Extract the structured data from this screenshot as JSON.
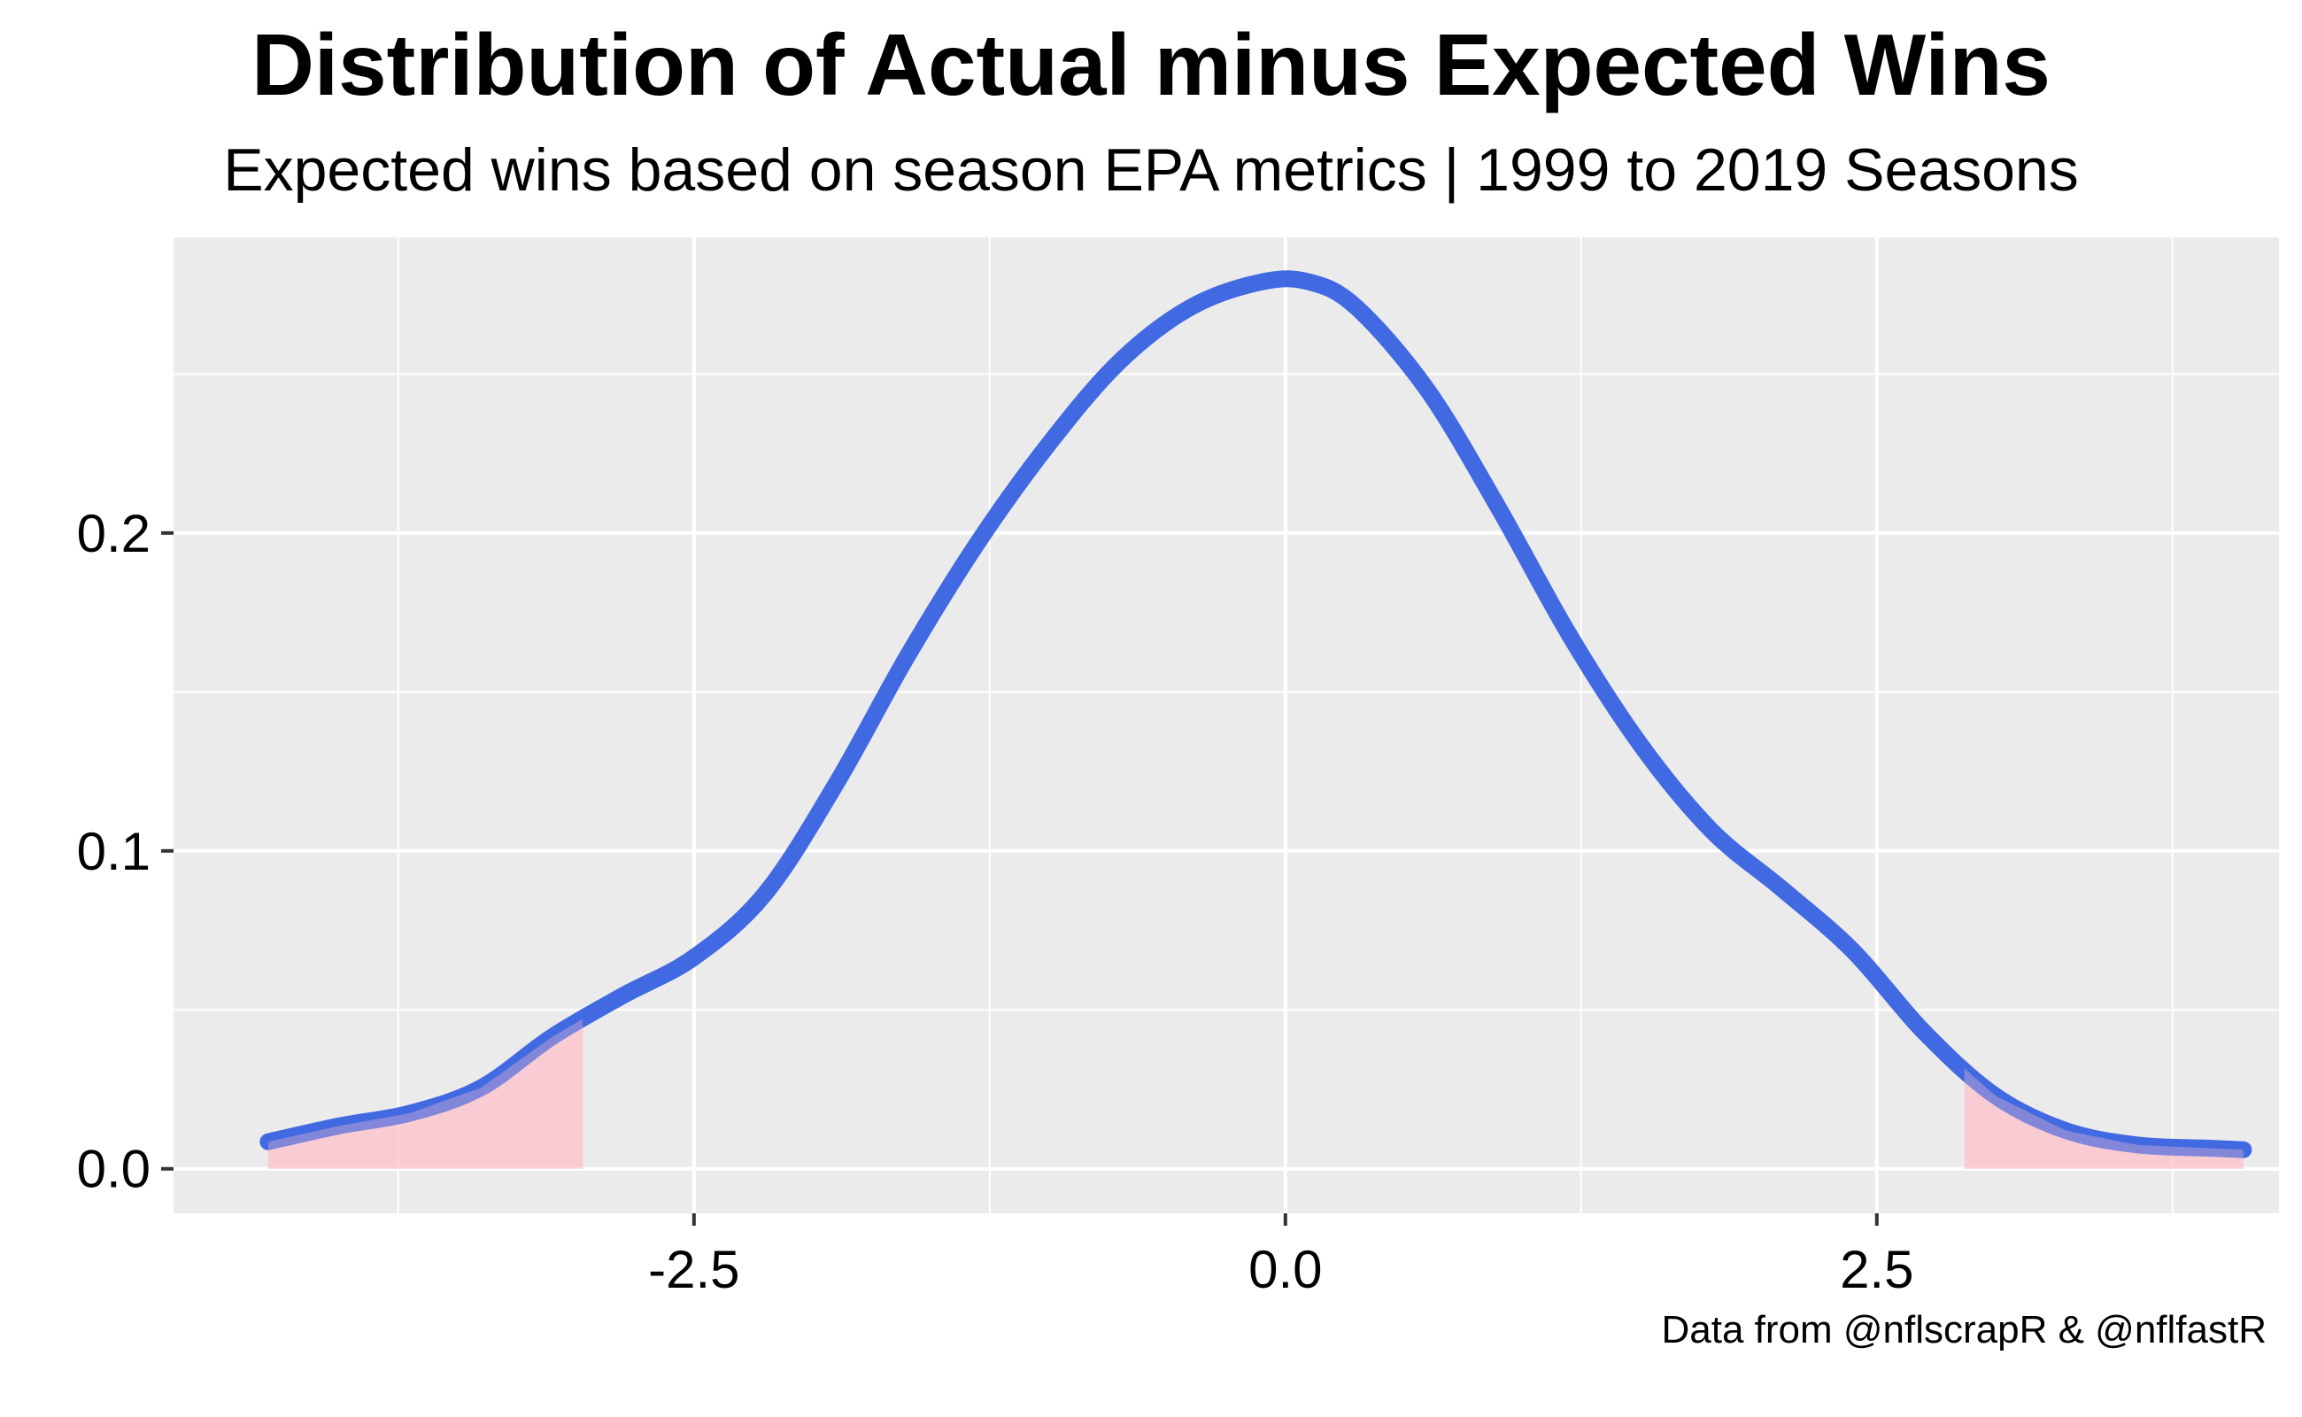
{
  "chart_data": {
    "type": "area",
    "title": "Distribution of Actual minus Expected Wins",
    "subtitle": "Expected wins based on season EPA metrics | 1999 to 2019 Seasons",
    "caption": "Data from @nflscrapR & @nflfastR",
    "xlabel": "",
    "ylabel": "",
    "xlim": [
      -4.7,
      4.2
    ],
    "ylim": [
      -0.014,
      0.293
    ],
    "x_ticks": [
      -2.5,
      0.0,
      2.5
    ],
    "x_tick_labels": [
      "-2.5",
      "0.0",
      "2.5"
    ],
    "y_ticks": [
      0.0,
      0.1,
      0.2
    ],
    "y_tick_labels": [
      "0.0",
      "0.1",
      "0.2"
    ],
    "grid": true,
    "legend": "none",
    "series": [
      {
        "type": "line",
        "color": "#4169E1",
        "x": [
          -4.3,
          -4.0,
          -3.7,
          -3.4,
          -3.1,
          -2.8,
          -2.5,
          -2.2,
          -1.9,
          -1.6,
          -1.3,
          -1.0,
          -0.7,
          -0.4,
          -0.1,
          0.1,
          0.3,
          0.6,
          0.9,
          1.2,
          1.5,
          1.8,
          2.1,
          2.4,
          2.7,
          3.0,
          3.3,
          3.6,
          3.9,
          4.05
        ],
        "y": [
          0.0085,
          0.0135,
          0.0175,
          0.0255,
          0.0415,
          0.0545,
          0.0665,
          0.0865,
          0.121,
          0.161,
          0.197,
          0.228,
          0.254,
          0.271,
          0.279,
          0.279,
          0.271,
          0.245,
          0.208,
          0.168,
          0.1335,
          0.1065,
          0.088,
          0.0685,
          0.043,
          0.023,
          0.012,
          0.0075,
          0.0065,
          0.006
        ]
      }
    ],
    "shaded_tails": {
      "color": "#FFC0CB",
      "left_end": -2.97,
      "right_start": 2.87
    }
  }
}
